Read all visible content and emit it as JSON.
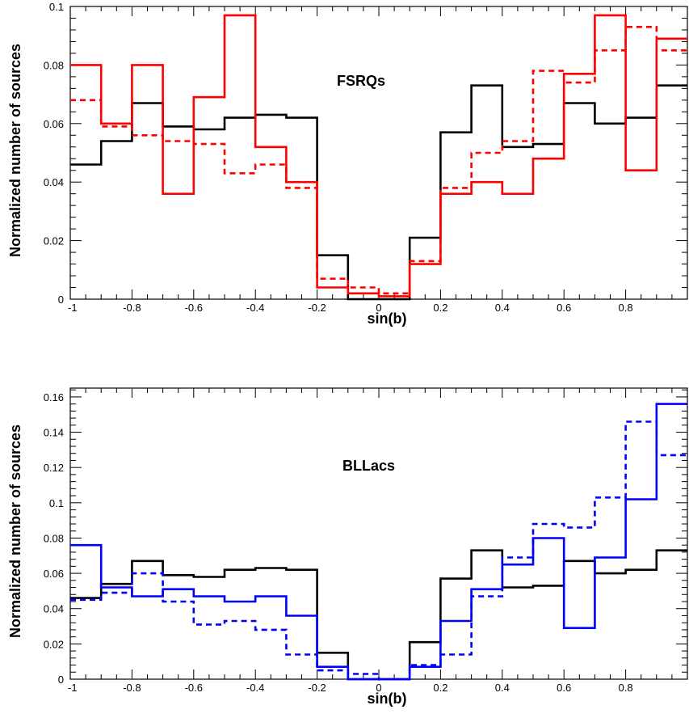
{
  "chart_data": [
    {
      "type": "line",
      "drawstyle": "step-histogram",
      "panel_label": "FSRQs",
      "xlabel": "sin(b)",
      "ylabel": "Normalized number of sources",
      "xlim": [
        -1,
        1
      ],
      "ylim": [
        0,
        0.1
      ],
      "bin_edges": [
        -1,
        -0.9,
        -0.8,
        -0.7,
        -0.6,
        -0.5,
        -0.4,
        -0.3,
        -0.2,
        -0.1,
        0,
        0.1,
        0.2,
        0.3,
        0.4,
        0.5,
        0.6,
        0.7,
        0.8,
        0.9,
        1
      ],
      "x_ticks": [
        -1,
        -0.8,
        -0.6,
        -0.4,
        -0.2,
        0,
        0.2,
        0.4,
        0.6,
        0.8
      ],
      "x_tick_labels": [
        "-1",
        "-0.8",
        "-0.6",
        "-0.4",
        "-0.2",
        "0",
        "0.2",
        "0.4",
        "0.6",
        "0.8"
      ],
      "y_ticks": [
        0,
        0.02,
        0.04,
        0.06,
        0.08,
        0.1
      ],
      "y_tick_labels": [
        "0",
        "0.02",
        "0.04",
        "0.06",
        "0.08",
        "0.1"
      ],
      "series": [
        {
          "color": "#000000",
          "dash": "solid",
          "values": [
            0.046,
            0.054,
            0.067,
            0.059,
            0.058,
            0.062,
            0.063,
            0.062,
            0.015,
            0.0,
            0.0,
            0.021,
            0.057,
            0.073,
            0.052,
            0.053,
            0.067,
            0.06,
            0.062,
            0.073
          ]
        },
        {
          "color": "#ff0000",
          "dash": "solid",
          "values": [
            0.08,
            0.06,
            0.08,
            0.036,
            0.069,
            0.097,
            0.052,
            0.04,
            0.004,
            0.002,
            0.001,
            0.012,
            0.036,
            0.04,
            0.036,
            0.048,
            0.077,
            0.097,
            0.044,
            0.089
          ]
        },
        {
          "color": "#ff0000",
          "dash": "dashed",
          "values": [
            0.068,
            0.059,
            0.056,
            0.054,
            0.053,
            0.043,
            0.046,
            0.038,
            0.007,
            0.004,
            0.002,
            0.013,
            0.038,
            0.05,
            0.054,
            0.078,
            0.074,
            0.085,
            0.093,
            0.085
          ]
        }
      ]
    },
    {
      "type": "line",
      "drawstyle": "step-histogram",
      "panel_label": "BLLacs",
      "xlabel": "sin(b)",
      "ylabel": "Normalized number of sources",
      "xlim": [
        -1,
        1
      ],
      "ylim": [
        0,
        0.165
      ],
      "bin_edges": [
        -1,
        -0.9,
        -0.8,
        -0.7,
        -0.6,
        -0.5,
        -0.4,
        -0.3,
        -0.2,
        -0.1,
        0,
        0.1,
        0.2,
        0.3,
        0.4,
        0.5,
        0.6,
        0.7,
        0.8,
        0.9,
        1
      ],
      "x_ticks": [
        -1,
        -0.8,
        -0.6,
        -0.4,
        -0.2,
        0,
        0.2,
        0.4,
        0.6,
        0.8
      ],
      "x_tick_labels": [
        "-1",
        "-0.8",
        "-0.6",
        "-0.4",
        "-0.2",
        "0",
        "0.2",
        "0.4",
        "0.6",
        "0.8"
      ],
      "y_ticks": [
        0,
        0.02,
        0.04,
        0.06,
        0.08,
        0.1,
        0.12,
        0.14,
        0.16
      ],
      "y_tick_labels": [
        "0",
        "0.02",
        "0.04",
        "0.06",
        "0.08",
        "0.1",
        "0.12",
        "0.14",
        "0.16"
      ],
      "series": [
        {
          "color": "#000000",
          "dash": "solid",
          "values": [
            0.046,
            0.054,
            0.067,
            0.059,
            0.058,
            0.062,
            0.063,
            0.062,
            0.015,
            0.0,
            0.0,
            0.021,
            0.057,
            0.073,
            0.052,
            0.053,
            0.067,
            0.06,
            0.062,
            0.073
          ]
        },
        {
          "color": "#0000ff",
          "dash": "solid",
          "values": [
            0.076,
            0.052,
            0.047,
            0.051,
            0.047,
            0.044,
            0.047,
            0.036,
            0.007,
            0.0,
            0.0,
            0.007,
            0.033,
            0.051,
            0.065,
            0.08,
            0.029,
            0.069,
            0.102,
            0.156
          ]
        },
        {
          "color": "#0000ff",
          "dash": "dashed",
          "values": [
            0.045,
            0.049,
            0.06,
            0.044,
            0.031,
            0.033,
            0.028,
            0.014,
            0.005,
            0.003,
            0.0,
            0.008,
            0.014,
            0.047,
            0.069,
            0.088,
            0.086,
            0.103,
            0.146,
            0.127
          ]
        }
      ]
    }
  ]
}
